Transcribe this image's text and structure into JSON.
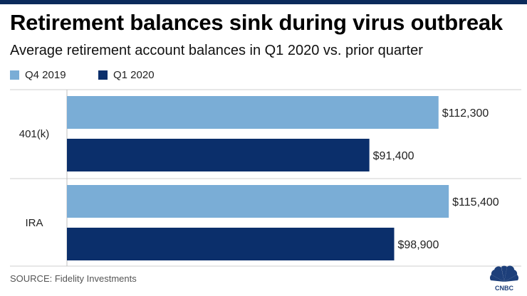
{
  "header": {
    "title": "Retirement balances sink during virus outbreak",
    "subtitle": "Average retirement account balances in Q1 2020 vs. prior quarter"
  },
  "footer": {
    "source": "SOURCE: Fidelity Investments",
    "logo_text": "CNBC"
  },
  "chart_data": {
    "type": "bar",
    "orientation": "horizontal",
    "categories": [
      "401(k)",
      "IRA"
    ],
    "series": [
      {
        "name": "Q4 2019",
        "values": [
          112300,
          115400
        ],
        "labels": [
          "$112,300",
          "$115,400"
        ],
        "color": "#7aadd6"
      },
      {
        "name": "Q1 2020",
        "values": [
          91400,
          98900
        ],
        "labels": [
          "$91,400",
          "$98,900"
        ],
        "color": "#0b2f6b"
      }
    ],
    "title": "Retirement balances sink during virus outbreak",
    "subtitle": "Average retirement account balances in Q1 2020 vs. prior quarter",
    "xlabel": "",
    "ylabel": "",
    "xlim": [
      0,
      130000
    ],
    "grid": false,
    "legend": "top-left"
  }
}
